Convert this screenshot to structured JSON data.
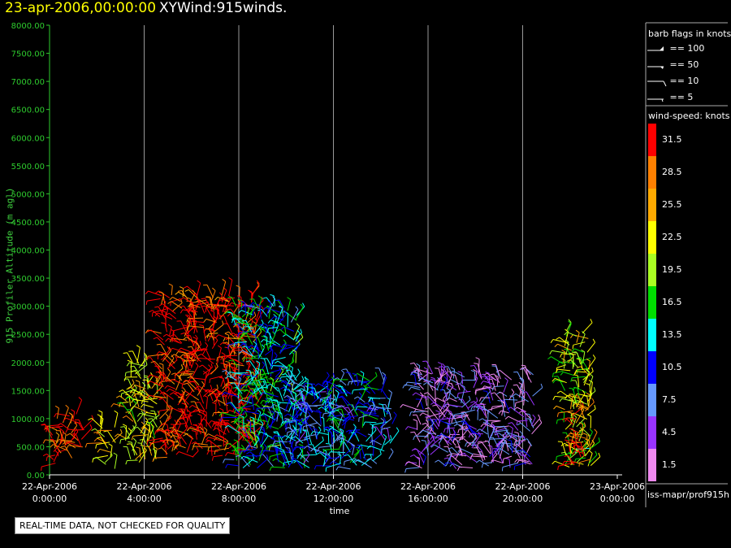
{
  "header": {
    "date": "23-apr-2006,00:00:00",
    "title": "XYWind:915winds."
  },
  "chart_data": {
    "type": "wind-barb",
    "title": "XYWind:915winds.",
    "xlabel": "time",
    "ylabel": "915 Profiler Altitude (m agl)",
    "ylim": [
      0,
      8000
    ],
    "xlim_hours": [
      0,
      24
    ],
    "grid": "vertical",
    "y_ticks": [
      "0.00",
      "500.00",
      "1000.00",
      "1500.00",
      "2000.00",
      "2500.00",
      "3000.00",
      "3500.00",
      "4000.00",
      "4500.00",
      "5000.00",
      "5500.00",
      "6000.00",
      "6500.00",
      "7000.00",
      "7500.00",
      "8000.00"
    ],
    "x_ticks": [
      {
        "date": "22-Apr-2006",
        "time": "0:00:00"
      },
      {
        "date": "22-Apr-2006",
        "time": "4:00:00"
      },
      {
        "date": "22-Apr-2006",
        "time": "8:00:00"
      },
      {
        "date": "22-Apr-2006",
        "time": "12:00:00"
      },
      {
        "date": "22-Apr-2006",
        "time": "16:00:00"
      },
      {
        "date": "22-Apr-2006",
        "time": "20:00:00"
      },
      {
        "date": "23-Apr-2006",
        "time": "0:00:00"
      }
    ],
    "wind_regions": [
      {
        "t": [
          0.1,
          1.5
        ],
        "z": [
          200,
          1100
        ],
        "speed": 31.5
      },
      {
        "t": [
          2.1,
          2.8
        ],
        "z": [
          100,
          900
        ],
        "speed": 25.5
      },
      {
        "t": [
          3.2,
          4.6
        ],
        "z": [
          200,
          2000
        ],
        "speed": 22.5
      },
      {
        "t": [
          4.6,
          8.8
        ],
        "z": [
          300,
          3200
        ],
        "speed": 31.5
      },
      {
        "t": [
          7.8,
          10.5
        ],
        "z": [
          100,
          3000
        ],
        "speed": 13.5
      },
      {
        "t": [
          10.0,
          14.5
        ],
        "z": [
          100,
          1700
        ],
        "speed": 10.5
      },
      {
        "t": [
          15.5,
          20.5
        ],
        "z": [
          100,
          1800
        ],
        "speed": 4.5
      },
      {
        "t": [
          21.7,
          22.9
        ],
        "z": [
          100,
          2600
        ],
        "speed": 19.5
      },
      {
        "t": [
          22.0,
          22.9
        ],
        "z": [
          100,
          1200
        ],
        "speed": 28.5
      }
    ],
    "barb_legend": {
      "title": "barb flags in knots",
      "items": [
        "== 100",
        "== 50",
        "== 10",
        "== 5"
      ]
    },
    "colorbar": {
      "title": "wind-speed: knots",
      "levels": [
        {
          "label": "31.5",
          "color": "#ff0000"
        },
        {
          "label": "28.5",
          "color": "#ff8000"
        },
        {
          "label": "25.5",
          "color": "#ffaa00"
        },
        {
          "label": "22.5",
          "color": "#ffff00"
        },
        {
          "label": "19.5",
          "color": "#aaff22"
        },
        {
          "label": "16.5",
          "color": "#00dd00"
        },
        {
          "label": "13.5",
          "color": "#00ffff"
        },
        {
          "label": "10.5",
          "color": "#0000ff"
        },
        {
          "label": "7.5",
          "color": "#6699ff"
        },
        {
          "label": "4.5",
          "color": "#9933ff"
        },
        {
          "label": "1.5",
          "color": "#ee88ee"
        }
      ]
    }
  },
  "footer": {
    "station": "iss-mapr/prof915h",
    "quality_note": "REAL-TIME DATA, NOT CHECKED FOR QUALITY"
  }
}
